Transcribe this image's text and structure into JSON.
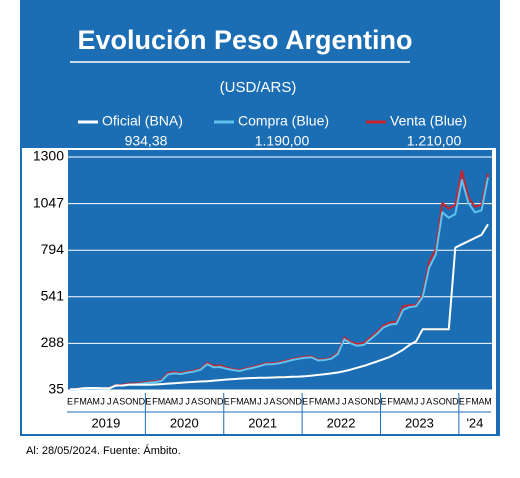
{
  "chart_data": {
    "type": "line",
    "title": "Evolución Peso Argentino",
    "subtitle": "(USD/ARS)",
    "footnote": "Al: 28/05/2024. Fuente: Ámbito.",
    "categories": [
      "E",
      "F",
      "M",
      "A",
      "M",
      "J",
      "J",
      "A",
      "S",
      "O",
      "N",
      "D",
      "E",
      "F",
      "M",
      "A",
      "M",
      "J",
      "J",
      "A",
      "S",
      "O",
      "N",
      "D",
      "E",
      "F",
      "M",
      "A",
      "M",
      "J",
      "J",
      "A",
      "S",
      "O",
      "N",
      "D",
      "E",
      "F",
      "M",
      "A",
      "M",
      "J",
      "J",
      "A",
      "S",
      "O",
      "N",
      "D",
      "E",
      "F",
      "M",
      "A",
      "M",
      "J",
      "J",
      "A",
      "S",
      "O",
      "N",
      "D",
      "E",
      "F",
      "M",
      "A",
      "M"
    ],
    "years": [
      "2019",
      "2020",
      "2021",
      "2022",
      "2023",
      "'24"
    ],
    "ylim": [
      35,
      1300
    ],
    "yticks": [
      35,
      288,
      541,
      794,
      1047,
      1300
    ],
    "grid": true,
    "series": [
      {
        "name": "Oficial (BNA)",
        "legend_value": "934,38",
        "color": "#ffffff",
        "values": [
          39,
          40,
          44,
          46,
          46,
          44,
          44,
          60,
          59,
          63,
          63,
          63,
          63,
          65,
          67,
          70,
          72,
          74,
          77,
          79,
          81,
          83,
          86,
          89,
          92,
          94,
          97,
          99,
          100,
          101,
          102,
          103,
          104,
          105,
          107,
          108,
          110,
          113,
          117,
          121,
          125,
          130,
          137,
          146,
          156,
          166,
          178,
          190,
          202,
          215,
          233,
          254,
          280,
          300,
          365,
          365,
          365,
          365,
          365,
          808,
          826,
          843,
          860,
          877,
          934.38
        ]
      },
      {
        "name": "Compra (Blue)",
        "legend_value": "1.190,00",
        "color": "#5ec3ee",
        "values": [
          37,
          39,
          42,
          44,
          44,
          42,
          43,
          58,
          60,
          65,
          66,
          70,
          75,
          78,
          84,
          120,
          125,
          122,
          130,
          135,
          145,
          175,
          158,
          160,
          150,
          143,
          138,
          148,
          155,
          165,
          175,
          175,
          180,
          188,
          198,
          205,
          210,
          212,
          195,
          198,
          205,
          230,
          310,
          288,
          275,
          280,
          310,
          340,
          375,
          390,
          395,
          470,
          485,
          490,
          540,
          700,
          770,
          1000,
          970,
          990,
          1175,
          1050,
          1000,
          1010,
          1190
        ]
      },
      {
        "name": "Venta (Blue)",
        "legend_value": "1.210,00",
        "color": "#c8232c",
        "values": [
          39,
          41,
          44,
          46,
          46,
          44,
          45,
          61,
          64,
          70,
          71,
          75,
          80,
          83,
          89,
          128,
          132,
          127,
          136,
          140,
          150,
          183,
          166,
          168,
          156,
          148,
          143,
          153,
          160,
          170,
          180,
          180,
          185,
          193,
          203,
          210,
          215,
          217,
          200,
          203,
          210,
          237,
          320,
          296,
          285,
          290,
          320,
          350,
          385,
          400,
          405,
          490,
          495,
          495,
          555,
          730,
          800,
          1050,
          1020,
          1040,
          1225,
          1080,
          1030,
          1040,
          1210
        ]
      }
    ]
  }
}
